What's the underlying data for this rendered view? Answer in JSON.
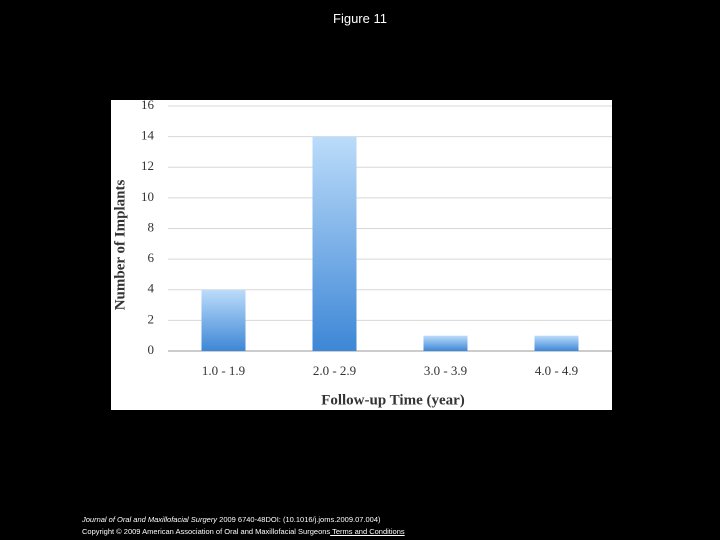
{
  "page_title": "Figure 11",
  "footer": {
    "journal": "Journal of Oral and Maxillofacial Surgery",
    "citation": " 2009 6740-48DOI: (10.1016/j.joms.2009.07.004)",
    "copyright": "Copyright © 2009 American Association of Oral and Maxillofacial Surgeons",
    "link": " Terms and Conditions"
  },
  "chart_data": {
    "type": "bar",
    "x_label": "Follow-up Time (year)",
    "y_label": "Number of Implants",
    "categories": [
      "1.0 - 1.9",
      "2.0 - 2.9",
      "3.0 - 3.9",
      "4.0 - 4.9"
    ],
    "values": [
      4,
      14,
      1,
      1
    ],
    "color": "#3d87d6",
    "ylim": [
      0,
      16
    ],
    "yticks": [
      0,
      2,
      4,
      6,
      8,
      10,
      12,
      14,
      16
    ],
    "grid": true
  }
}
